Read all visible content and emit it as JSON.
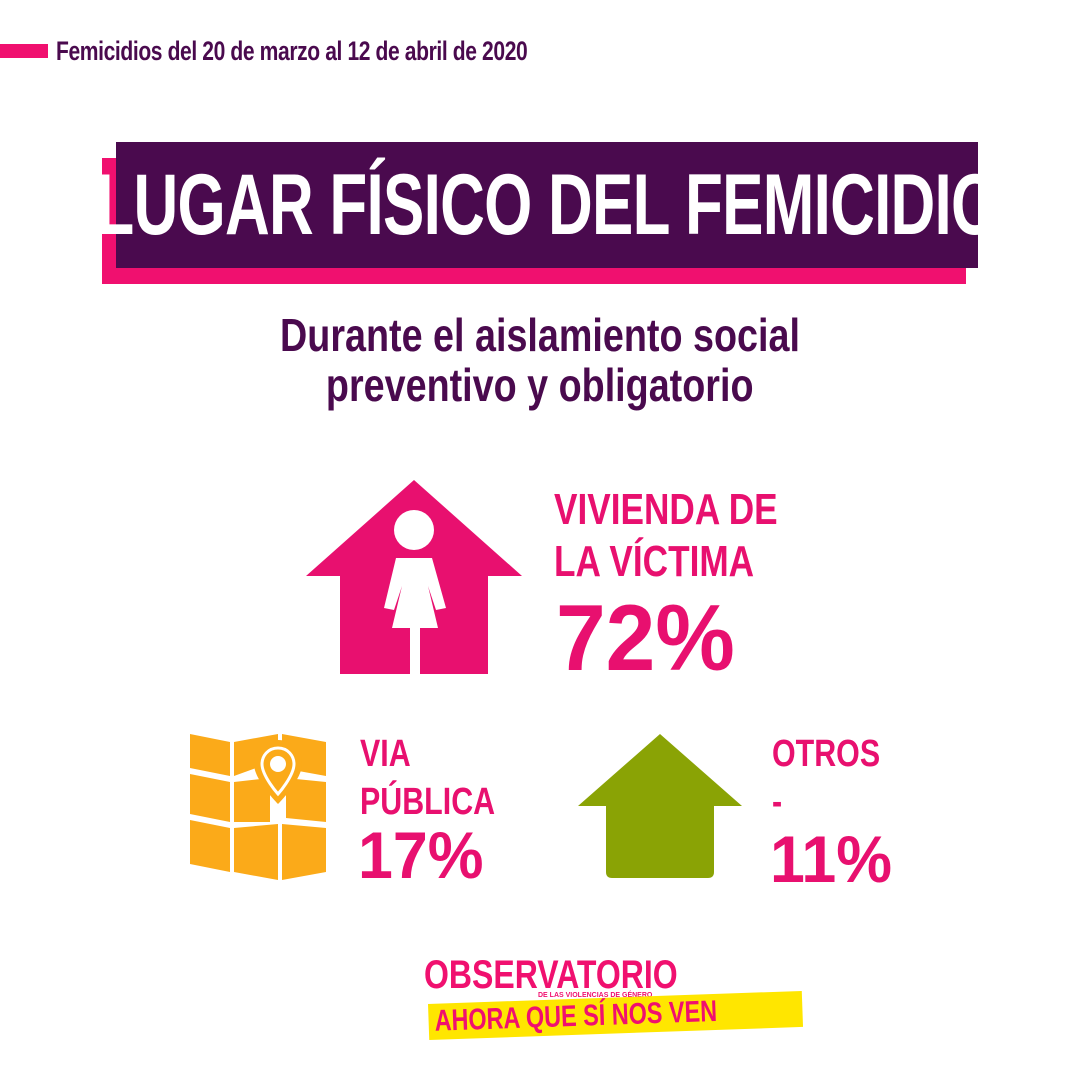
{
  "header": {
    "text": "Femicidios del 20 de marzo al 12 de abril de 2020"
  },
  "title": "LUGAR FÍSICO DEL FEMICIDIO",
  "subtitle": {
    "line1": "Durante el aislamiento social",
    "line2": "preventivo y obligatorio"
  },
  "stats": [
    {
      "label_line1": "VIVIENDA DE",
      "label_line2": "LA VÍCTIMA",
      "value": "72%",
      "icon": "house-woman-icon",
      "color": "#e8106f"
    },
    {
      "label_line1": "VIA",
      "label_line2": "PÚBLICA",
      "value": "17%",
      "icon": "map-pin-icon",
      "color": "#fbaa19"
    },
    {
      "label_line1": "OTROS",
      "label_line2": "-",
      "value": "11%",
      "icon": "house-icon",
      "color": "#8aa305"
    }
  ],
  "logo": {
    "top": "OBSERVATORIO",
    "small": "DE LAS VIOLENCIAS DE GÉNERO",
    "bottom": "AHORA QUE SÍ NOS VEN"
  },
  "colors": {
    "purple": "#4a0a4e",
    "pink": "#f0106f",
    "orange": "#fbaa19",
    "olive": "#8aa305"
  }
}
